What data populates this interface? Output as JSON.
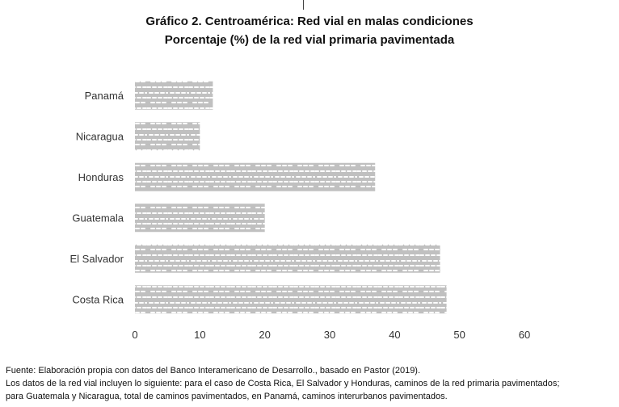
{
  "chart_data": {
    "type": "bar",
    "orientation": "horizontal",
    "title": "Gráfico 2. Centroamérica: Red vial en malas condiciones",
    "subtitle": "Porcentaje (%) de la red vial primaria pavimentada",
    "categories": [
      "Costa Rica",
      "El Salvador",
      "Guatemala",
      "Honduras",
      "Nicaragua",
      "Panamá"
    ],
    "values": [
      48,
      47,
      20,
      37,
      10,
      12
    ],
    "xlim": [
      0,
      60
    ],
    "xticks": [
      "0",
      "10",
      "20",
      "30",
      "40",
      "50",
      "60"
    ],
    "grid": false,
    "legend": "none",
    "bar_color": "#c0c0c0",
    "bar_pattern_color": "#ffffff"
  },
  "notes": {
    "source": "Fuente: Elaboración propia con datos del Banco Interamericano de Desarrollo., basado en Pastor (2019).",
    "line2": "Los datos de la red vial incluyen lo siguiente: para el caso de Costa Rica, El Salvador y Honduras, caminos de la red primaria pavimentados;",
    "line3": "para Guatemala y Nicaragua, total de caminos pavimentados, en Panamá, caminos interurbanos pavimentados."
  }
}
